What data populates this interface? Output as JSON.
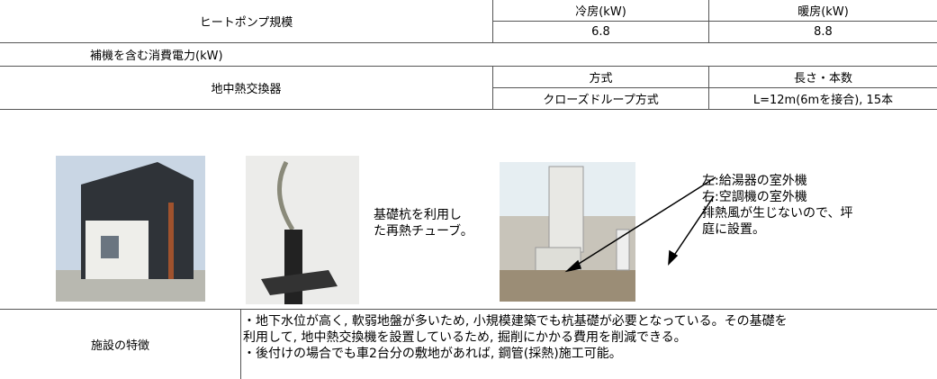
{
  "heat_pump": {
    "label": "ヒートポンプ規模",
    "columns": [
      "冷房(kW)",
      "暖房(kW)"
    ],
    "values": [
      "6.8",
      "8.8"
    ]
  },
  "power": {
    "label": "補機を含む消費電力(kW)"
  },
  "exchanger": {
    "label": "地中熱交換器",
    "columns": [
      "方式",
      "長さ・本数"
    ],
    "values": [
      "クローズドループ方式",
      "L=12m(6mを接合), 15本"
    ]
  },
  "photos": {
    "pipe_caption": [
      "基礎杭を利用し",
      "た再熱チューブ。"
    ],
    "unit_caption": [
      "左:給湯器の室外機",
      "右:空調機の室外機",
      "排熱風が生じないので、坪",
      "庭に設置。"
    ]
  },
  "features": {
    "label": "施設の特徴",
    "lines": [
      "・地下水位が高く, 軟弱地盤が多いため, 小規模建築でも杭基礎が必要となっている。その基礎を",
      "利用して, 地中熱交換機を設置しているため, 掘削にかかる費用を削減できる。",
      "・後付けの場合でも車2台分の敷地があれば, 鋼管(採熱)施工可能。"
    ]
  }
}
